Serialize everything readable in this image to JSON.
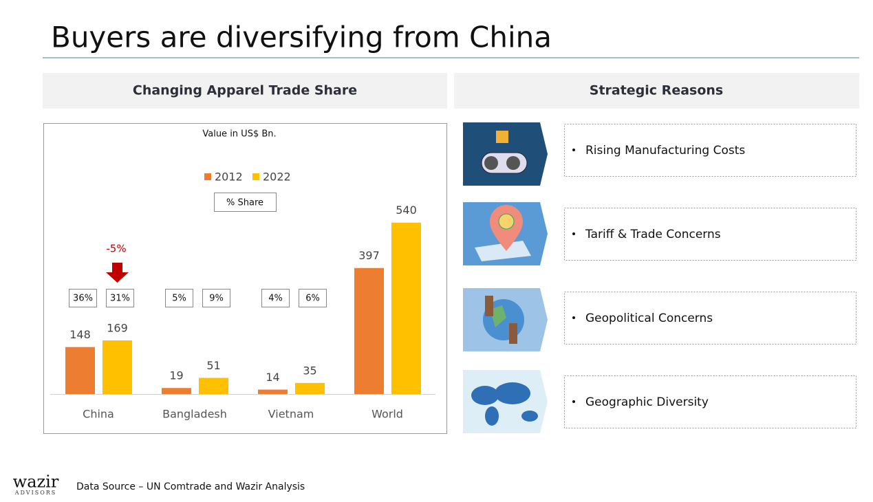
{
  "header": {
    "title": "Buyers are diversifying from China"
  },
  "left_panel": {
    "heading": "Changing Apparel Trade Share"
  },
  "chart_data": {
    "type": "bar",
    "subtitle": "Value in US$ Bn.",
    "categories": [
      "China",
      "Bangladesh",
      "Vietnam",
      "World"
    ],
    "series": [
      {
        "name": "2012",
        "color": "#ed7d31",
        "values": [
          148,
          19,
          14,
          397
        ],
        "share_labels": [
          "36%",
          "5%",
          "4%"
        ]
      },
      {
        "name": "2022",
        "color": "#ffc000",
        "values": [
          169,
          51,
          35,
          540
        ],
        "share_labels": [
          "31%",
          "9%",
          "6%"
        ]
      }
    ],
    "share_title": "% Share",
    "annotation": "-5%",
    "ylim": [
      0,
      600
    ]
  },
  "right_panel": {
    "heading": "Strategic Reasons",
    "reasons": [
      "Rising Manufacturing Costs",
      "Tariff & Trade Concerns",
      "Geopolitical Concerns",
      "Geographic Diversity"
    ]
  },
  "footer": {
    "logo": "wazir",
    "logo_sub": "ADVISORS",
    "source": "Data Source – UN Comtrade and Wazir Analysis"
  }
}
